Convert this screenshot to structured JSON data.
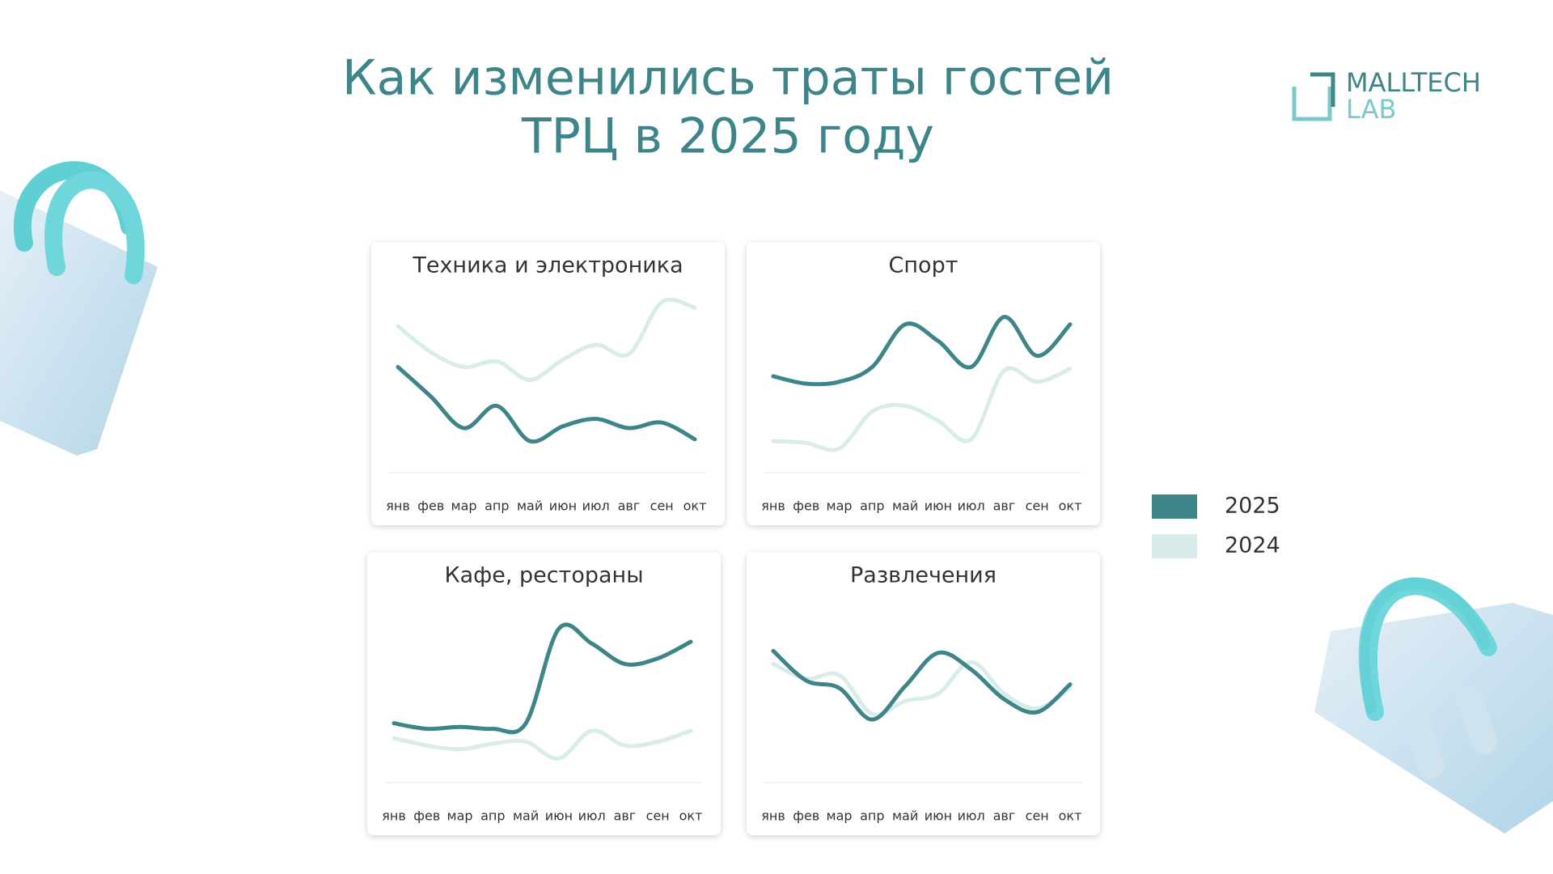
{
  "header": {
    "title": [
      "Как изменились траты гостей",
      "ТРЦ в 2025 году"
    ],
    "logo": [
      "MALLTECH",
      "LAB"
    ]
  },
  "chart_data": [
    {
      "type": "line",
      "title": "Техника и электроника",
      "categories": [
        "янв",
        "фев",
        "мар",
        "апр",
        "май",
        "июн",
        "июл",
        "авг",
        "сен",
        "окт"
      ],
      "ylim": [
        0,
        100
      ],
      "series": [
        {
          "name": "2025",
          "color": "#3d8588",
          "values": [
            57,
            41,
            24,
            36,
            17,
            25,
            29,
            24,
            27,
            18
          ]
        },
        {
          "name": "2024",
          "color": "#d7eceb",
          "values": [
            79,
            65,
            57,
            60,
            50,
            61,
            69,
            64,
            92,
            89
          ]
        }
      ]
    },
    {
      "type": "line",
      "title": "Спорт",
      "categories": [
        "янв",
        "фев",
        "мар",
        "апр",
        "май",
        "июн",
        "июл",
        "авг",
        "сен",
        "окт"
      ],
      "ylim": [
        0,
        100
      ],
      "series": [
        {
          "name": "2025",
          "color": "#3d8588",
          "values": [
            52,
            48,
            49,
            57,
            80,
            71,
            57,
            84,
            63,
            80
          ]
        },
        {
          "name": "2024",
          "color": "#d7eceb",
          "values": [
            17,
            16,
            13,
            33,
            36,
            28,
            18,
            55,
            49,
            56
          ]
        }
      ]
    },
    {
      "type": "line",
      "title": "Кафе, рестораны",
      "categories": [
        "янв",
        "фев",
        "мар",
        "апр",
        "май",
        "июн",
        "июл",
        "авг",
        "сен",
        "окт"
      ],
      "ylim": [
        0,
        100
      ],
      "series": [
        {
          "name": "2025",
          "color": "#3d8588",
          "values": [
            32,
            29,
            30,
            29,
            32,
            83,
            75,
            64,
            67,
            76
          ]
        },
        {
          "name": "2024",
          "color": "#d7eceb",
          "values": [
            24,
            20,
            18,
            21,
            22,
            13,
            28,
            20,
            22,
            28
          ]
        }
      ]
    },
    {
      "type": "line",
      "title": "Развлечения",
      "categories": [
        "янв",
        "фев",
        "мар",
        "апр",
        "май",
        "июн",
        "июл",
        "авг",
        "сен",
        "окт"
      ],
      "ylim": [
        0,
        100
      ],
      "series": [
        {
          "name": "2025",
          "color": "#3d8588",
          "values": [
            71,
            55,
            51,
            34,
            52,
            70,
            61,
            45,
            38,
            53
          ]
        },
        {
          "name": "2024",
          "color": "#d7eceb",
          "values": [
            64,
            56,
            58,
            37,
            44,
            48,
            65,
            48,
            40,
            51
          ]
        }
      ]
    }
  ]
}
